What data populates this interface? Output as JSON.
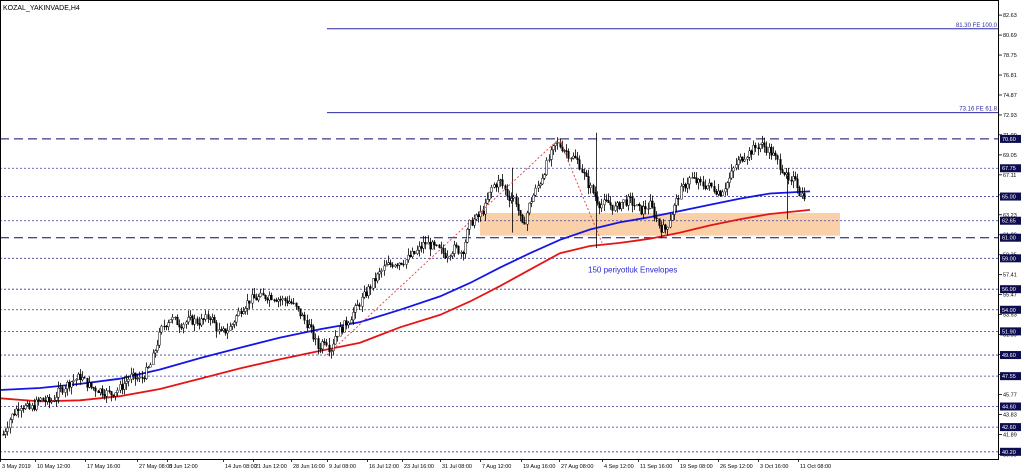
{
  "symbol_label": "KOZAL_YAKINVADE,H4",
  "colors": {
    "background": "#ffffff",
    "frame": "#000000",
    "dashed_level": "#0a0a6a",
    "dotted_level": "#3a3aa0",
    "fib_line": "#2c2ca6",
    "zone_fill": "#f9c89a",
    "zigzag": "#e04040",
    "envelope_upper": "#1515e6",
    "envelope_lower": "#e61515",
    "candle": "#000000",
    "annotation_text": "#2a2ad0",
    "price_tag_bg": "#0d0d4f"
  },
  "chart_data": {
    "type": "candlestick",
    "title": "KOZAL_YAKINVADE,H4",
    "timeframe": "H4",
    "grid": false,
    "ylim": [
      39.5,
      84.0
    ],
    "y_axis_ticks": [
      "82.63",
      "80.69",
      "78.75",
      "76.81",
      "74.87",
      "72.93",
      "71.00",
      "69.05",
      "67.11",
      "65.17",
      "63.23",
      "61.29",
      "59.35",
      "57.41",
      "55.47",
      "53.53",
      "51.59",
      "49.65",
      "47.71",
      "45.77",
      "43.83",
      "41.89",
      "39.95"
    ],
    "x_axis_ticks": [
      "3 May 2019",
      "10 May 12:00",
      "17 May 16:00",
      "27 May 08:00",
      "3 Jun 12:00",
      "14 Jun 08:00",
      "21 Jun 12:00",
      "28 Jun 16:00",
      "9 Jul 08:00",
      "16 Jul 12:00",
      "23 Jul 16:00",
      "31 Jul 08:00",
      "7 Aug 12:00",
      "19 Aug 16:00",
      "27 Aug 08:00",
      "4 Sep 12:00",
      "11 Sep 16:00",
      "19 Sep 08:00",
      "26 Sep 12:00",
      "3 Oct 16:00",
      "11 Oct 08:00"
    ],
    "price_tags": [
      "70.60",
      "67.75",
      "65.00",
      "62.65",
      "61.00",
      "59.00",
      "56.00",
      "54.00",
      "51.90",
      "49.60",
      "47.55",
      "44.60",
      "42.60",
      "40.20"
    ],
    "horizontal_levels": {
      "dashed": [
        70.6,
        61.0
      ],
      "dotted": [
        67.75,
        65.0,
        62.65,
        59.0,
        56.0,
        54.0,
        51.9,
        49.6,
        47.55,
        44.6,
        42.6,
        40.2
      ]
    },
    "fib_levels": [
      {
        "label": "81.30 FE 100.0",
        "value": 81.3
      },
      {
        "label": "73.16 FE 61.8",
        "value": 73.16
      }
    ],
    "support_zone": {
      "from": 61.2,
      "to": 63.4
    },
    "zigzag": [
      {
        "x": "9 Jul 08:00",
        "y": 49.6
      },
      {
        "x": "27 Aug 08:00",
        "y": 70.6
      },
      {
        "x": "4 Sep 12:00",
        "y": 60.5
      }
    ],
    "series": [
      {
        "name": "150 periyotluk Envelopes",
        "kind": "envelope-upper",
        "values": [
          [
            0,
            46.2
          ],
          [
            40,
            46.4
          ],
          [
            80,
            46.8
          ],
          [
            120,
            47.3
          ],
          [
            160,
            48.2
          ],
          [
            200,
            49.3
          ],
          [
            240,
            50.3
          ],
          [
            280,
            51.3
          ],
          [
            320,
            52.1
          ],
          [
            360,
            52.8
          ],
          [
            400,
            54.0
          ],
          [
            440,
            55.3
          ],
          [
            470,
            56.6
          ],
          [
            500,
            58.1
          ],
          [
            530,
            59.5
          ],
          [
            560,
            60.8
          ],
          [
            590,
            61.8
          ],
          [
            620,
            62.5
          ],
          [
            650,
            63.0
          ],
          [
            680,
            63.6
          ],
          [
            710,
            64.2
          ],
          [
            740,
            64.8
          ],
          [
            770,
            65.3
          ],
          [
            810,
            65.5
          ]
        ]
      },
      {
        "name": "",
        "kind": "envelope-lower",
        "values": [
          [
            0,
            45.4
          ],
          [
            40,
            45.1
          ],
          [
            80,
            45.2
          ],
          [
            120,
            45.6
          ],
          [
            160,
            46.3
          ],
          [
            200,
            47.3
          ],
          [
            240,
            48.3
          ],
          [
            280,
            49.2
          ],
          [
            320,
            50.0
          ],
          [
            360,
            50.8
          ],
          [
            400,
            52.3
          ],
          [
            440,
            53.5
          ],
          [
            470,
            54.8
          ],
          [
            500,
            56.3
          ],
          [
            530,
            57.9
          ],
          [
            560,
            59.5
          ],
          [
            590,
            60.2
          ],
          [
            620,
            60.5
          ],
          [
            650,
            60.9
          ],
          [
            680,
            61.5
          ],
          [
            710,
            62.2
          ],
          [
            740,
            62.8
          ],
          [
            770,
            63.3
          ],
          [
            810,
            63.7
          ]
        ]
      }
    ],
    "annotations": [
      {
        "text": "150 periyotluk Envelopes",
        "x": "4 Sep 12:00",
        "y": 58.0
      }
    ],
    "candle_close_path": [
      [
        0,
        41.2
      ],
      [
        10,
        43.5
      ],
      [
        20,
        44.8
      ],
      [
        30,
        44.3
      ],
      [
        40,
        45.3
      ],
      [
        50,
        45.0
      ],
      [
        60,
        46.2
      ],
      [
        70,
        47.0
      ],
      [
        80,
        47.5
      ],
      [
        90,
        46.5
      ],
      [
        100,
        46.2
      ],
      [
        110,
        45.8
      ],
      [
        120,
        46.4
      ],
      [
        130,
        47.5
      ],
      [
        140,
        47.2
      ],
      [
        150,
        48.5
      ],
      [
        155,
        50.2
      ],
      [
        162,
        52.3
      ],
      [
        170,
        53.2
      ],
      [
        180,
        52.6
      ],
      [
        190,
        53.0
      ],
      [
        200,
        52.8
      ],
      [
        210,
        53.4
      ],
      [
        220,
        51.6
      ],
      [
        230,
        52.3
      ],
      [
        240,
        54.0
      ],
      [
        250,
        55.0
      ],
      [
        260,
        55.2
      ],
      [
        270,
        55.4
      ],
      [
        280,
        55.0
      ],
      [
        290,
        54.8
      ],
      [
        300,
        53.6
      ],
      [
        310,
        52.2
      ],
      [
        318,
        50.2
      ],
      [
        325,
        51.3
      ],
      [
        330,
        50.0
      ],
      [
        335,
        51.5
      ],
      [
        345,
        52.6
      ],
      [
        355,
        54.0
      ],
      [
        365,
        55.5
      ],
      [
        375,
        57.0
      ],
      [
        385,
        58.2
      ],
      [
        395,
        58.6
      ],
      [
        405,
        58.8
      ],
      [
        415,
        59.5
      ],
      [
        425,
        60.5
      ],
      [
        435,
        60.0
      ],
      [
        445,
        59.4
      ],
      [
        455,
        60.0
      ],
      [
        462,
        59.6
      ],
      [
        470,
        62.5
      ],
      [
        478,
        63.0
      ],
      [
        485,
        64.0
      ],
      [
        492,
        66.0
      ],
      [
        500,
        66.5
      ],
      [
        508,
        65.0
      ],
      [
        515,
        64.8
      ],
      [
        522,
        62.0
      ],
      [
        530,
        64.5
      ],
      [
        540,
        66.5
      ],
      [
        548,
        68.5
      ],
      [
        556,
        70.2
      ],
      [
        562,
        69.8
      ],
      [
        570,
        69.0
      ],
      [
        578,
        68.4
      ],
      [
        585,
        66.8
      ],
      [
        592,
        65.5
      ],
      [
        600,
        64.2
      ],
      [
        608,
        64.4
      ],
      [
        615,
        63.8
      ],
      [
        622,
        64.5
      ],
      [
        630,
        64.6
      ],
      [
        640,
        63.6
      ],
      [
        650,
        64.2
      ],
      [
        660,
        62.0
      ],
      [
        665,
        61.8
      ],
      [
        672,
        63.5
      ],
      [
        680,
        65.5
      ],
      [
        690,
        66.8
      ],
      [
        700,
        66.2
      ],
      [
        710,
        66.0
      ],
      [
        720,
        65.4
      ],
      [
        728,
        66.5
      ],
      [
        736,
        68.2
      ],
      [
        744,
        69.0
      ],
      [
        752,
        69.5
      ],
      [
        760,
        70.1
      ],
      [
        768,
        69.6
      ],
      [
        776,
        68.6
      ],
      [
        784,
        67.4
      ],
      [
        790,
        66.0
      ],
      [
        795,
        67.0
      ],
      [
        800,
        65.2
      ],
      [
        806,
        65.2
      ]
    ]
  }
}
